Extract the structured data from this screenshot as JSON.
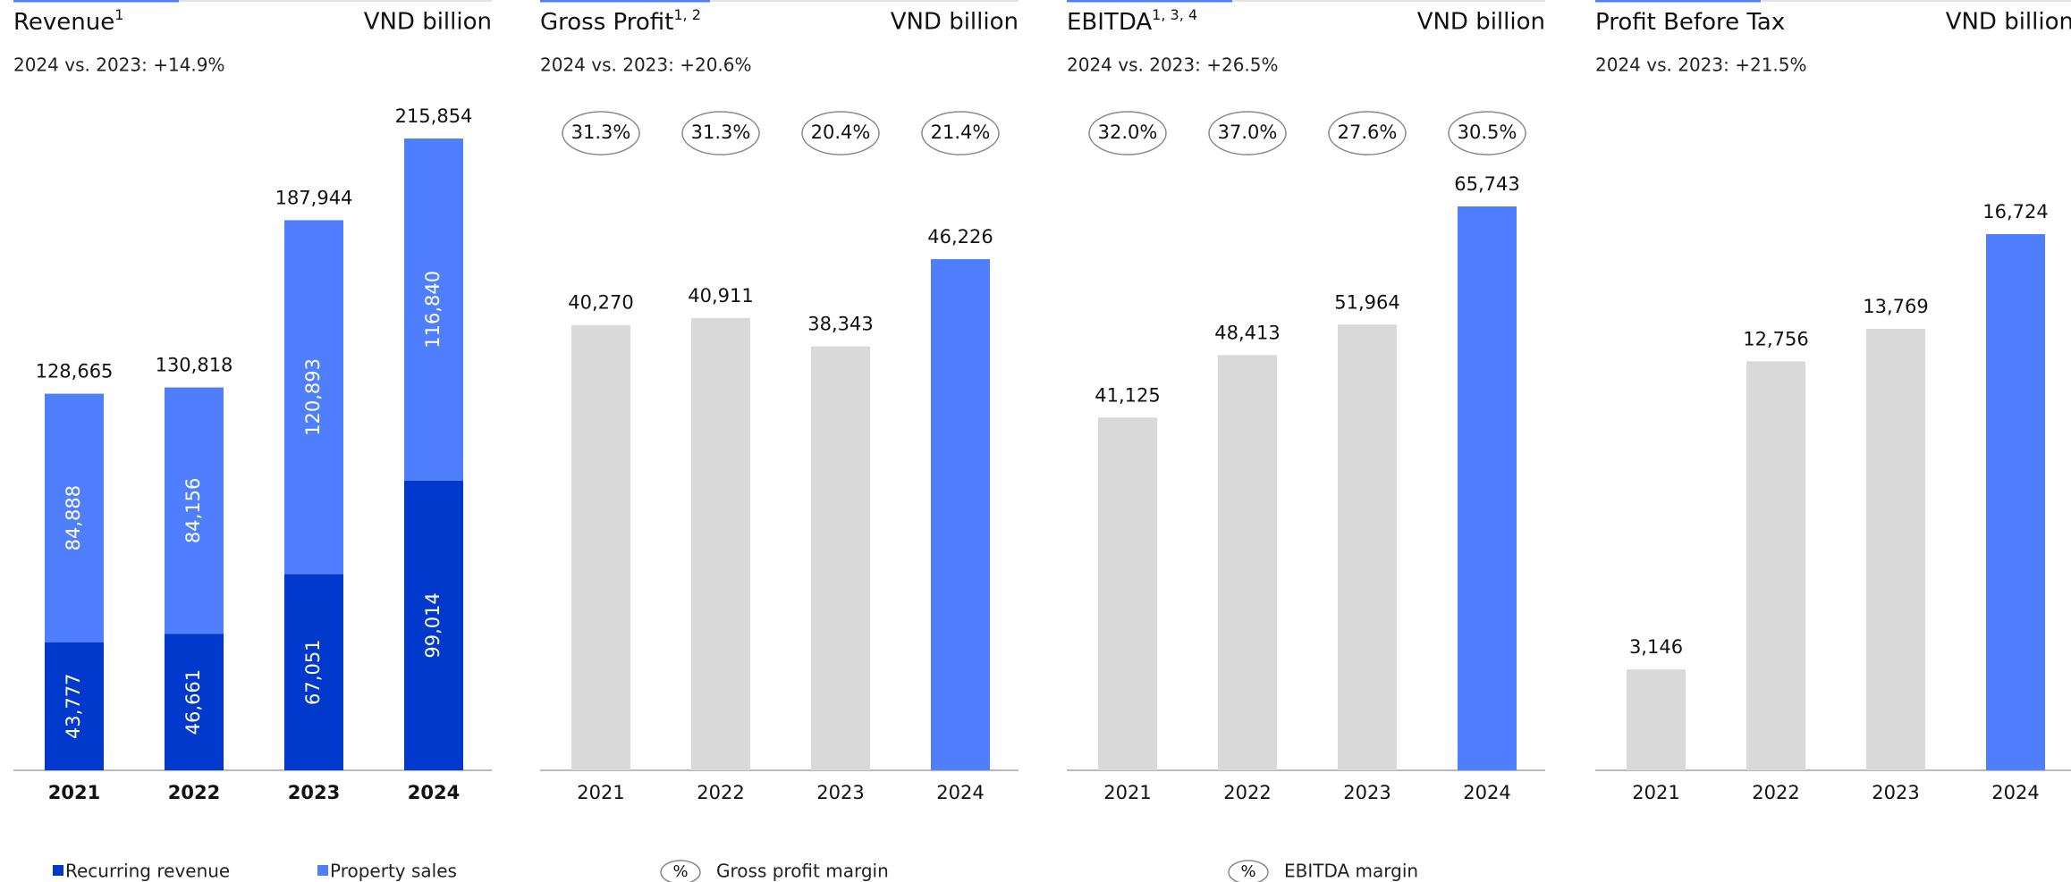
{
  "chart_data": [
    {
      "type": "bar",
      "stacked": true,
      "title": "Revenue",
      "title_note": "1",
      "unit": "VND billion",
      "subtitle": "2024 vs. 2023: +14.9%",
      "categories": [
        "2021",
        "2022",
        "2023",
        "2024"
      ],
      "series": [
        {
          "name": "Recurring revenue",
          "color": "#0039cc",
          "values": [
            43777,
            46661,
            67051,
            99014
          ],
          "value_labels": [
            "43,777",
            "46,661",
            "67,051",
            "99,014"
          ]
        },
        {
          "name": "Property sales",
          "color": "#4f7fff",
          "values": [
            84888,
            84156,
            120893,
            116840
          ],
          "value_labels": [
            "84,888",
            "84,156",
            "120,893",
            "116,840"
          ]
        }
      ],
      "totals": [
        128665,
        130818,
        187944,
        215854
      ],
      "total_labels": [
        "128,665",
        "130,818",
        "187,944",
        "215,854"
      ]
    },
    {
      "type": "bar",
      "title": "Gross Profit",
      "title_note": "1, 2",
      "unit": "VND billion",
      "subtitle": "2024 vs. 2023: +20.6%",
      "categories": [
        "2021",
        "2022",
        "2023",
        "2024"
      ],
      "values": [
        40270,
        40911,
        38343,
        46226
      ],
      "value_labels": [
        "40,270",
        "40,911",
        "38,343",
        "46,226"
      ],
      "colors": [
        "#d9d9d9",
        "#d9d9d9",
        "#d9d9d9",
        "#4f7fff"
      ],
      "margins": [
        31.3,
        31.3,
        20.4,
        21.4
      ],
      "margin_labels": [
        "31.3%",
        "31.3%",
        "20.4%",
        "21.4%"
      ],
      "legend": {
        "symbol": "%",
        "label": "Gross profit margin"
      }
    },
    {
      "type": "bar",
      "title": "EBITDA",
      "title_note": "1, 3, 4",
      "unit": "VND billion",
      "subtitle": "2024 vs. 2023: +26.5%",
      "categories": [
        "2021",
        "2022",
        "2023",
        "2024"
      ],
      "values": [
        41125,
        48413,
        51964,
        65743
      ],
      "value_labels": [
        "41,125",
        "48,413",
        "51,964",
        "65,743"
      ],
      "colors": [
        "#d9d9d9",
        "#d9d9d9",
        "#d9d9d9",
        "#4f7fff"
      ],
      "margins": [
        32.0,
        37.0,
        27.6,
        30.5
      ],
      "margin_labels": [
        "32.0%",
        "37.0%",
        "27.6%",
        "30.5%"
      ],
      "legend": {
        "symbol": "%",
        "label": "EBITDA margin"
      }
    },
    {
      "type": "bar",
      "title": "Profit Before Tax",
      "unit": "VND billion",
      "subtitle": "2024 vs. 2023: +21.5%",
      "categories": [
        "2021",
        "2022",
        "2023",
        "2024"
      ],
      "values": [
        3146,
        12756,
        13769,
        16724
      ],
      "value_labels": [
        "3,146",
        "12,756",
        "13,769",
        "16,724"
      ],
      "colors": [
        "#d9d9d9",
        "#d9d9d9",
        "#d9d9d9",
        "#4f7fff"
      ]
    }
  ]
}
